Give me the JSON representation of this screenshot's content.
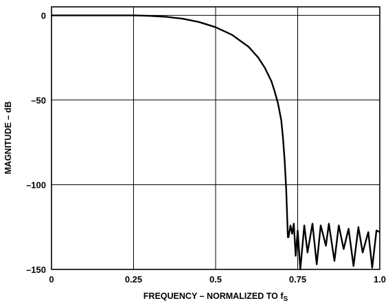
{
  "chart_data": {
    "type": "line",
    "title": "",
    "xlabel_main": "FREQUENCY – NORMALIZED TO f",
    "xlabel_sub": "S",
    "ylabel": "MAGNITUDE – dB",
    "xlim": [
      0,
      1.0
    ],
    "ylim": [
      -150,
      5
    ],
    "x_ticks": [
      {
        "v": 0,
        "label": "0"
      },
      {
        "v": 0.25,
        "label": "0.25"
      },
      {
        "v": 0.5,
        "label": "0.5"
      },
      {
        "v": 0.75,
        "label": "0.75"
      },
      {
        "v": 1.0,
        "label": "1.0"
      }
    ],
    "y_ticks": [
      {
        "v": 0,
        "label": "0"
      },
      {
        "v": -50,
        "label": "–50"
      },
      {
        "v": -100,
        "label": "–100"
      },
      {
        "v": -150,
        "label": "–150"
      }
    ],
    "grid": true,
    "line_color": "#000000",
    "series": [
      {
        "passband": [
          [
            0,
            0
          ],
          [
            0.05,
            0
          ],
          [
            0.1,
            0
          ],
          [
            0.15,
            0
          ],
          [
            0.2,
            0
          ],
          [
            0.25,
            0
          ],
          [
            0.28,
            -0.2
          ],
          [
            0.3,
            -0.35
          ],
          [
            0.35,
            -0.9
          ],
          [
            0.4,
            -2.0
          ],
          [
            0.45,
            -4.0
          ],
          [
            0.5,
            -7.0
          ],
          [
            0.55,
            -11.5
          ],
          [
            0.6,
            -18.5
          ],
          [
            0.63,
            -25
          ],
          [
            0.65,
            -31
          ],
          [
            0.67,
            -39
          ],
          [
            0.68,
            -45
          ],
          [
            0.69,
            -52
          ],
          [
            0.7,
            -62
          ],
          [
            0.705,
            -72
          ],
          [
            0.71,
            -85
          ],
          [
            0.715,
            -103
          ],
          [
            0.72,
            -131
          ]
        ],
        "stopband_peaks": [
          [
            0.721,
            -131
          ],
          [
            0.728,
            -124
          ],
          [
            0.738,
            -123
          ],
          [
            0.75,
            -127
          ],
          [
            0.77,
            -124
          ],
          [
            0.795,
            -123
          ],
          [
            0.82,
            -124
          ],
          [
            0.845,
            -123
          ],
          [
            0.875,
            -124
          ],
          [
            0.905,
            -126
          ],
          [
            0.935,
            -125
          ],
          [
            0.965,
            -128
          ],
          [
            0.99,
            -127
          ],
          [
            1.0,
            -128
          ]
        ],
        "stopband_nulls": [
          [
            0.722,
            -131
          ],
          [
            0.733,
            -129
          ],
          [
            0.744,
            -142
          ],
          [
            0.758,
            -150
          ],
          [
            0.78,
            -140
          ],
          [
            0.808,
            -147
          ],
          [
            0.836,
            -136
          ],
          [
            0.862,
            -145
          ],
          [
            0.89,
            -138
          ],
          [
            0.92,
            -148
          ],
          [
            0.948,
            -140
          ],
          [
            0.977,
            -149
          ]
        ]
      }
    ]
  }
}
